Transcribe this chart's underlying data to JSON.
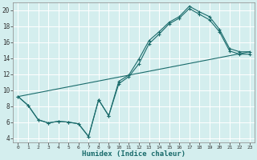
{
  "xlabel": "Humidex (Indice chaleur)",
  "ylabel": "",
  "bg_color": "#d4eeee",
  "line_color": "#1a6b6b",
  "grid_color": "#ffffff",
  "xlim": [
    -0.5,
    23.5
  ],
  "ylim": [
    3.5,
    21.0
  ],
  "xticks": [
    0,
    1,
    2,
    3,
    4,
    5,
    6,
    7,
    8,
    9,
    10,
    11,
    12,
    13,
    14,
    15,
    16,
    17,
    18,
    19,
    20,
    21,
    22,
    23
  ],
  "yticks": [
    4,
    6,
    8,
    10,
    12,
    14,
    16,
    18,
    20
  ],
  "line1_x": [
    0,
    1,
    2,
    3,
    4,
    5,
    6,
    7,
    8,
    9,
    10,
    11,
    12,
    13,
    14,
    15,
    16,
    17,
    18,
    19,
    20,
    21,
    22,
    23
  ],
  "line1_y": [
    9.2,
    8.1,
    6.3,
    5.9,
    6.1,
    6.0,
    5.8,
    4.2,
    8.8,
    6.8,
    11.1,
    11.9,
    13.9,
    16.2,
    17.3,
    18.5,
    19.2,
    20.5,
    19.8,
    19.2,
    17.6,
    15.2,
    14.8,
    14.8
  ],
  "line2_x": [
    0,
    1,
    2,
    3,
    4,
    5,
    6,
    7,
    8,
    9,
    10,
    11,
    12,
    13,
    14,
    15,
    16,
    17,
    18,
    19,
    20,
    21,
    22,
    23
  ],
  "line2_y": [
    9.2,
    8.1,
    6.3,
    5.9,
    6.1,
    6.0,
    5.8,
    4.2,
    8.8,
    6.8,
    10.8,
    11.7,
    13.3,
    15.8,
    17.0,
    18.3,
    19.0,
    20.2,
    19.5,
    18.8,
    17.3,
    14.9,
    14.5,
    14.5
  ],
  "line3_x": [
    0,
    23
  ],
  "line3_y": [
    9.2,
    14.8
  ]
}
